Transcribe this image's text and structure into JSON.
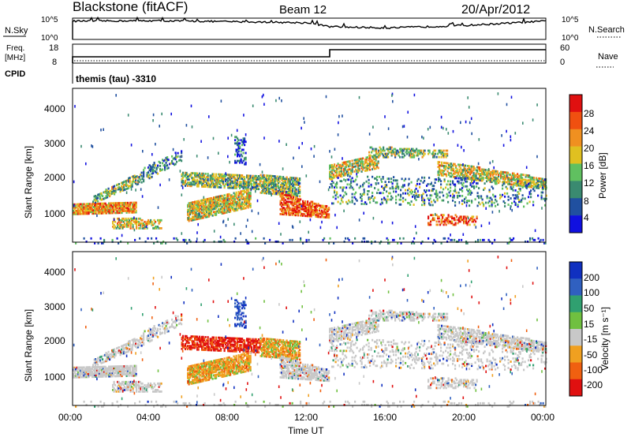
{
  "header": {
    "station": "Blackstone (fitACF)",
    "beam": "Beam 12",
    "date": "20/Apr/2012"
  },
  "strip_panel": {
    "left_label": "N.Sky",
    "right_label": "N.Search",
    "left_ticks": [
      "10^5",
      "10^0"
    ],
    "right_ticks": [
      "10^5",
      "10^0"
    ]
  },
  "freq_panel": {
    "left_label_1": "Freq.",
    "left_label_2": "[MHz]",
    "left_ticks": [
      "18",
      "8"
    ],
    "right_ticks": [
      "60",
      "0"
    ],
    "right_label": "Nave"
  },
  "cpid": {
    "label": "CPID",
    "value": "themis (tau) -3310"
  },
  "x_axis": {
    "label": "Time UT",
    "ticks": [
      "00:00",
      "04:00",
      "08:00",
      "12:00",
      "16:00",
      "20:00",
      "00:00"
    ]
  },
  "power_panel": {
    "ylabel": "Slant Range [km]",
    "yticks": [
      "1000",
      "2000",
      "3000",
      "4000"
    ],
    "colorbar_label": "Power [dB]",
    "colorbar_ticks": [
      "4",
      "8",
      "12",
      "16",
      "20",
      "24",
      "28"
    ],
    "colors": [
      "#1010e0",
      "#2050a0",
      "#3a8a70",
      "#60c060",
      "#e0c020",
      "#f09020",
      "#f05010",
      "#e01010"
    ]
  },
  "velocity_panel": {
    "ylabel": "Slant Range [km]",
    "yticks": [
      "1000",
      "2000",
      "3000",
      "4000"
    ],
    "colorbar_label": "Velocity [m s⁻¹]",
    "colorbar_ticks": [
      "200",
      "100",
      "50",
      "15",
      "-15",
      "-50",
      "-100",
      "-200"
    ],
    "colors": [
      "#1030c0",
      "#3060c0",
      "#30a070",
      "#70c040",
      "#c8c8c8",
      "#f0a020",
      "#f06010",
      "#e01010"
    ]
  },
  "chart_data": [
    {
      "type": "line",
      "title": "",
      "x_units": "Time UT",
      "series": [
        {
          "name": "N.Sky",
          "x": [
            "00:00",
            "04:00",
            "08:00",
            "12:00",
            "13:00",
            "16:00",
            "20:00",
            "00:00"
          ],
          "values": [
            20000,
            25000,
            15000,
            8000,
            1000,
            500,
            2000,
            20000
          ]
        }
      ],
      "ylabel": "",
      "ylim": [
        1,
        100000
      ],
      "scale": "log"
    },
    {
      "type": "line",
      "title": "",
      "series": [
        {
          "name": "Freq.",
          "x": [
            "00:00",
            "00:00",
            "13:00",
            "13:00",
            "00:00"
          ],
          "values": [
            8,
            11,
            11,
            15,
            15
          ]
        },
        {
          "name": "Nave",
          "x": [
            "00:00",
            "00:00"
          ],
          "values": [
            10,
            10
          ]
        }
      ],
      "ylim": [
        8,
        18
      ]
    },
    {
      "type": "heatmap",
      "title": "",
      "ylabel": "Slant Range [km]",
      "xlabel": "Time UT",
      "ylim": [
        180,
        4500
      ],
      "colorbar": "Power [dB]",
      "colorbar_range": [
        3,
        30
      ]
    },
    {
      "type": "heatmap",
      "title": "",
      "ylabel": "Slant Range [km]",
      "xlabel": "Time UT",
      "ylim": [
        180,
        4500
      ],
      "colorbar": "Velocity [m s⁻¹]",
      "colorbar_range": [
        -200,
        200
      ]
    }
  ]
}
